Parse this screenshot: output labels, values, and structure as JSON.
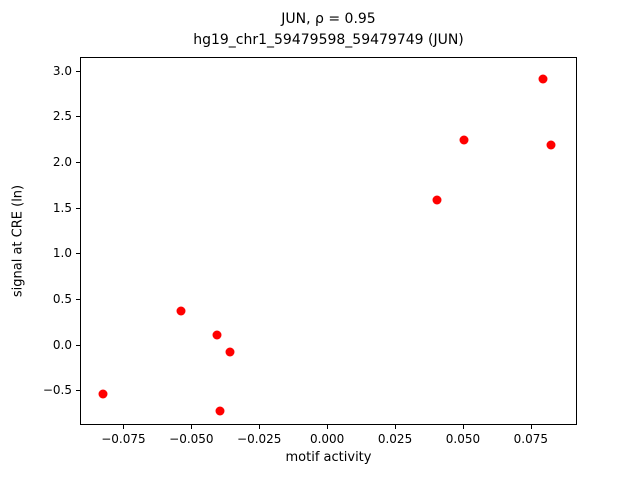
{
  "chart_data": {
    "type": "scatter",
    "title_line1": "JUN, ρ = 0.95",
    "title_line2": "hg19_chr1_59479598_59479749 (JUN)",
    "xlabel": "motif activity",
    "ylabel": "signal at CRE (ln)",
    "marker_color": "#ff0000",
    "xlim": [
      -0.091,
      0.092
    ],
    "ylim": [
      -0.88,
      3.15
    ],
    "xticks": [
      -0.075,
      -0.05,
      -0.025,
      0,
      0.025,
      0.05,
      0.075
    ],
    "yticks": [
      -0.5,
      0,
      0.5,
      1,
      1.5,
      2,
      2.5,
      3
    ],
    "points": [
      [
        -0.083,
        -0.53
      ],
      [
        -0.054,
        0.38
      ],
      [
        -0.041,
        0.12
      ],
      [
        -0.04,
        -0.72
      ],
      [
        -0.036,
        -0.07
      ],
      [
        0.04,
        1.6
      ],
      [
        0.05,
        2.25
      ],
      [
        0.079,
        2.92
      ],
      [
        0.082,
        2.2
      ]
    ],
    "legend": "none",
    "grid": false
  }
}
